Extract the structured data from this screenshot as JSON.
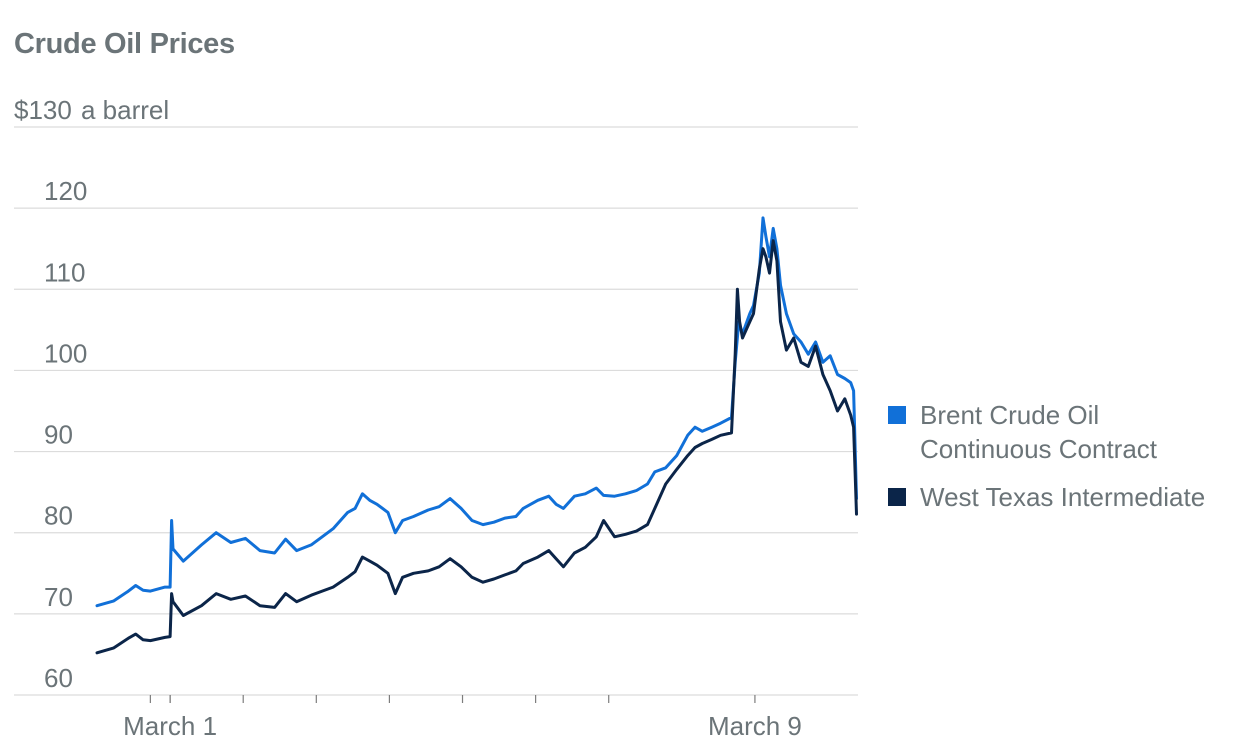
{
  "chart_data": {
    "type": "line",
    "title": "Crude Oil Prices",
    "ylabel_prefix": "$",
    "ylabel_unit": "a barrel",
    "ylim": [
      60,
      130
    ],
    "yticks": [
      60,
      70,
      80,
      90,
      100,
      110,
      120,
      130
    ],
    "ytick_labels": [
      "60",
      "70",
      "80",
      "90",
      "100",
      "110",
      "120",
      "130"
    ],
    "xlim": [
      -0.73,
      9.68
    ],
    "xticks": [
      0,
      0.27,
      1.27,
      2.27,
      3.27,
      4.27,
      5.27,
      6.27
    ],
    "xtick_labels": [
      {
        "x": 0.27,
        "label": "March 1"
      },
      {
        "x": 8.27,
        "label": "March 9"
      }
    ],
    "x_unit": "days from March 1 (label positions)",
    "grid": true,
    "legend_position": "right",
    "series": [
      {
        "name": "Brent Crude Oil Continuous Contract",
        "color": "#1170d8",
        "points": [
          [
            -0.73,
            71.0
          ],
          [
            -0.5,
            71.6
          ],
          [
            -0.3,
            72.8
          ],
          [
            -0.2,
            73.5
          ],
          [
            -0.1,
            72.9
          ],
          [
            0.0,
            72.8
          ],
          [
            0.2,
            73.3
          ],
          [
            0.27,
            73.3
          ],
          [
            0.29,
            81.5
          ],
          [
            0.31,
            78.0
          ],
          [
            0.45,
            76.5
          ],
          [
            0.7,
            78.5
          ],
          [
            0.9,
            80.0
          ],
          [
            1.1,
            78.8
          ],
          [
            1.3,
            79.3
          ],
          [
            1.5,
            77.8
          ],
          [
            1.7,
            77.5
          ],
          [
            1.85,
            79.2
          ],
          [
            2.0,
            77.8
          ],
          [
            2.2,
            78.5
          ],
          [
            2.35,
            79.5
          ],
          [
            2.5,
            80.5
          ],
          [
            2.7,
            82.5
          ],
          [
            2.8,
            83.0
          ],
          [
            2.9,
            84.8
          ],
          [
            3.0,
            84.0
          ],
          [
            3.1,
            83.5
          ],
          [
            3.25,
            82.5
          ],
          [
            3.35,
            80.0
          ],
          [
            3.45,
            81.5
          ],
          [
            3.6,
            82.0
          ],
          [
            3.8,
            82.8
          ],
          [
            3.95,
            83.2
          ],
          [
            4.1,
            84.2
          ],
          [
            4.25,
            83.0
          ],
          [
            4.4,
            81.5
          ],
          [
            4.55,
            81.0
          ],
          [
            4.7,
            81.3
          ],
          [
            4.85,
            81.8
          ],
          [
            5.0,
            82.0
          ],
          [
            5.1,
            83.0
          ],
          [
            5.3,
            84.0
          ],
          [
            5.45,
            84.5
          ],
          [
            5.55,
            83.5
          ],
          [
            5.65,
            83.0
          ],
          [
            5.8,
            84.5
          ],
          [
            5.95,
            84.8
          ],
          [
            6.1,
            85.5
          ],
          [
            6.2,
            84.6
          ],
          [
            6.35,
            84.5
          ],
          [
            6.5,
            84.8
          ],
          [
            6.65,
            85.2
          ],
          [
            6.8,
            86.0
          ],
          [
            6.9,
            87.5
          ],
          [
            7.05,
            88.0
          ],
          [
            7.2,
            89.5
          ],
          [
            7.35,
            92.0
          ],
          [
            7.45,
            93.0
          ],
          [
            7.55,
            92.5
          ],
          [
            7.68,
            93.0
          ],
          [
            7.8,
            93.5
          ],
          [
            7.95,
            94.2
          ],
          [
            8.0,
            101.0
          ],
          [
            8.05,
            106.0
          ],
          [
            8.1,
            104.5
          ],
          [
            8.2,
            107.0
          ],
          [
            8.25,
            108.0
          ],
          [
            8.33,
            112.0
          ],
          [
            8.38,
            118.8
          ],
          [
            8.42,
            116.5
          ],
          [
            8.47,
            114.0
          ],
          [
            8.52,
            117.5
          ],
          [
            8.57,
            115.0
          ],
          [
            8.62,
            110.5
          ],
          [
            8.7,
            107.0
          ],
          [
            8.8,
            104.5
          ],
          [
            8.9,
            103.5
          ],
          [
            9.0,
            102.0
          ],
          [
            9.1,
            103.5
          ],
          [
            9.2,
            101.0
          ],
          [
            9.3,
            101.8
          ],
          [
            9.4,
            99.5
          ],
          [
            9.5,
            99.0
          ],
          [
            9.58,
            98.5
          ],
          [
            9.62,
            97.5
          ],
          [
            9.66,
            84.2
          ]
        ]
      },
      {
        "name": "West Texas Intermediate",
        "color": "#0b2549",
        "points": [
          [
            -0.73,
            65.2
          ],
          [
            -0.5,
            65.8
          ],
          [
            -0.3,
            67.0
          ],
          [
            -0.2,
            67.5
          ],
          [
            -0.1,
            66.8
          ],
          [
            0.0,
            66.7
          ],
          [
            0.2,
            67.1
          ],
          [
            0.27,
            67.2
          ],
          [
            0.29,
            72.5
          ],
          [
            0.31,
            71.5
          ],
          [
            0.45,
            69.8
          ],
          [
            0.7,
            71.0
          ],
          [
            0.9,
            72.5
          ],
          [
            1.1,
            71.8
          ],
          [
            1.3,
            72.2
          ],
          [
            1.5,
            71.0
          ],
          [
            1.7,
            70.8
          ],
          [
            1.85,
            72.5
          ],
          [
            2.0,
            71.5
          ],
          [
            2.2,
            72.3
          ],
          [
            2.35,
            72.8
          ],
          [
            2.5,
            73.3
          ],
          [
            2.7,
            74.5
          ],
          [
            2.8,
            75.2
          ],
          [
            2.9,
            77.0
          ],
          [
            3.0,
            76.5
          ],
          [
            3.1,
            76.0
          ],
          [
            3.25,
            75.0
          ],
          [
            3.35,
            72.5
          ],
          [
            3.45,
            74.5
          ],
          [
            3.6,
            75.0
          ],
          [
            3.8,
            75.3
          ],
          [
            3.95,
            75.8
          ],
          [
            4.1,
            76.8
          ],
          [
            4.25,
            75.8
          ],
          [
            4.4,
            74.5
          ],
          [
            4.55,
            73.9
          ],
          [
            4.7,
            74.3
          ],
          [
            4.85,
            74.8
          ],
          [
            5.0,
            75.3
          ],
          [
            5.1,
            76.2
          ],
          [
            5.3,
            77.0
          ],
          [
            5.45,
            77.8
          ],
          [
            5.55,
            76.8
          ],
          [
            5.65,
            75.8
          ],
          [
            5.8,
            77.5
          ],
          [
            5.95,
            78.2
          ],
          [
            6.1,
            79.5
          ],
          [
            6.2,
            81.5
          ],
          [
            6.35,
            79.5
          ],
          [
            6.5,
            79.8
          ],
          [
            6.65,
            80.2
          ],
          [
            6.8,
            81.0
          ],
          [
            6.9,
            83.0
          ],
          [
            7.05,
            86.0
          ],
          [
            7.2,
            87.8
          ],
          [
            7.35,
            89.5
          ],
          [
            7.45,
            90.5
          ],
          [
            7.55,
            91.0
          ],
          [
            7.68,
            91.5
          ],
          [
            7.8,
            92.0
          ],
          [
            7.95,
            92.3
          ],
          [
            8.0,
            102.0
          ],
          [
            8.03,
            110.0
          ],
          [
            8.06,
            106.0
          ],
          [
            8.1,
            104.0
          ],
          [
            8.2,
            106.0
          ],
          [
            8.25,
            107.0
          ],
          [
            8.33,
            112.5
          ],
          [
            8.38,
            115.0
          ],
          [
            8.42,
            114.0
          ],
          [
            8.47,
            112.0
          ],
          [
            8.52,
            116.0
          ],
          [
            8.57,
            113.5
          ],
          [
            8.62,
            106.0
          ],
          [
            8.7,
            102.5
          ],
          [
            8.8,
            104.0
          ],
          [
            8.9,
            101.0
          ],
          [
            9.0,
            100.5
          ],
          [
            9.1,
            103.0
          ],
          [
            9.2,
            99.5
          ],
          [
            9.3,
            97.5
          ],
          [
            9.4,
            95.0
          ],
          [
            9.5,
            96.5
          ],
          [
            9.58,
            94.5
          ],
          [
            9.62,
            93.0
          ],
          [
            9.66,
            82.3
          ]
        ]
      }
    ]
  }
}
